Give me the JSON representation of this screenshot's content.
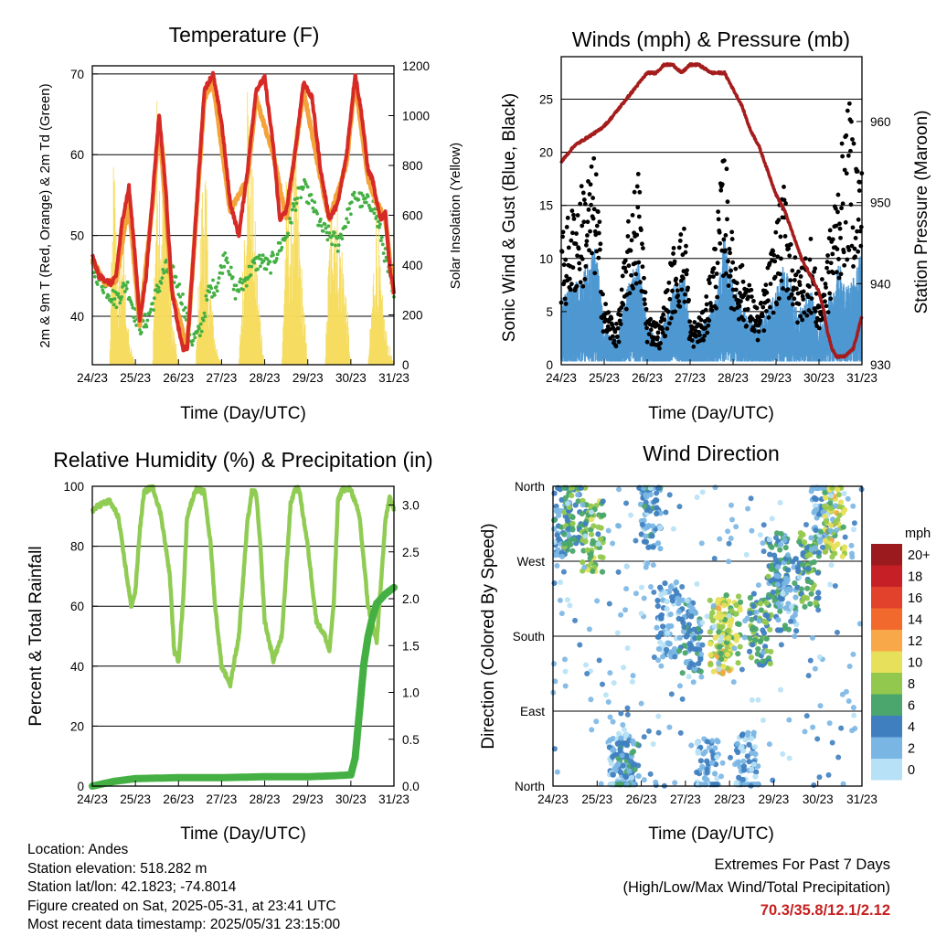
{
  "colors": {
    "temp_2m": "#d62a26",
    "temp_9m": "#f4a23a",
    "dewpoint": "#44b043",
    "solar": "#f6dc5c",
    "wind_sonic": "#4f98d2",
    "gust": "#000000",
    "pressure": "#a51c1c",
    "rh": "#90cc54",
    "precip": "#44b043",
    "extremes_text": "#c62020"
  },
  "info": {
    "location": "Location: Andes",
    "elevation": "Station elevation: 518.282 m",
    "latlon": "Station lat/lon: 42.1823; -74.8014",
    "created": "Figure created on Sat, 2025-05-31, at 23:41 UTC",
    "recent": "Most recent data timestamp: 2025/05/31 23:15:00"
  },
  "extremes": {
    "line1": "Extremes For Past 7 Days",
    "line2": "(High/Low/Max Wind/Total Precipitation)",
    "values": "70.3/35.8/12.1/2.12"
  },
  "chart_data": [
    {
      "type": "line",
      "title": "Temperature (F)",
      "xlabel": "Time (Day/UTC)",
      "ylabel": "2m & 9m T (Red, Orange) & 2m Td (Green)",
      "y2label": "Solar Insolation (Yellow)",
      "x_ticks": [
        "24/23",
        "25/23",
        "26/23",
        "27/23",
        "28/23",
        "29/23",
        "30/23",
        "31/23"
      ],
      "xlim": [
        0,
        7
      ],
      "ylim": [
        34,
        71
      ],
      "y_ticks": [
        40,
        50,
        60,
        70
      ],
      "y2lim": [
        0,
        1200
      ],
      "y2_ticks": [
        0,
        200,
        400,
        600,
        800,
        1000,
        1200
      ],
      "grid": true,
      "series": [
        {
          "name": "2m T",
          "axis": "y",
          "x": [
            0,
            0.15,
            0.3,
            0.45,
            0.55,
            0.7,
            0.85,
            1,
            1.1,
            1.25,
            1.4,
            1.55,
            1.7,
            1.85,
            2,
            2.1,
            2.2,
            2.4,
            2.6,
            2.8,
            3,
            3.2,
            3.4,
            3.6,
            3.8,
            4,
            4.2,
            4.35,
            4.5,
            4.7,
            4.9,
            5.1,
            5.3,
            5.5,
            5.7,
            5.9,
            6.1,
            6.25,
            6.4,
            6.5,
            6.6,
            6.7,
            6.8,
            6.9,
            7
          ],
          "values": [
            47.5,
            45,
            44.5,
            44,
            45,
            52,
            56,
            47,
            39.5,
            45,
            55,
            65,
            56,
            43,
            38.5,
            36,
            36,
            52,
            68,
            70,
            64,
            54,
            50,
            58,
            68,
            69.5,
            61,
            52,
            53,
            60,
            69,
            67,
            58,
            52,
            54,
            60,
            70,
            65,
            58,
            57,
            54,
            52,
            53,
            46,
            43
          ]
        },
        {
          "name": "9m T",
          "axis": "y",
          "x": [
            0,
            0.3,
            0.55,
            0.85,
            1.1,
            1.4,
            1.55,
            1.85,
            2.2,
            2.6,
            2.8,
            3.2,
            3.6,
            3.8,
            4.2,
            4.5,
            4.9,
            5.3,
            5.5,
            5.9,
            6.1,
            6.4,
            6.6,
            6.8,
            7
          ],
          "values": [
            47,
            44,
            44.5,
            54,
            39,
            54,
            64,
            43,
            36,
            67,
            69,
            53,
            57,
            67,
            60,
            52,
            68,
            57,
            52,
            59,
            69,
            57,
            54,
            52,
            42.5
          ]
        },
        {
          "name": "2m Td",
          "axis": "y",
          "x": [
            0,
            0.3,
            0.55,
            0.8,
            1,
            1.15,
            1.3,
            1.5,
            1.7,
            1.9,
            2.1,
            2.3,
            2.5,
            2.7,
            2.9,
            3.1,
            3.3,
            3.5,
            3.7,
            3.9,
            4.1,
            4.3,
            4.5,
            4.7,
            4.9,
            5.1,
            5.3,
            5.5,
            5.7,
            5.9,
            6.1,
            6.3,
            6.5,
            6.7,
            6.85,
            7
          ],
          "values": [
            46,
            43.5,
            42,
            44,
            40,
            38.5,
            40,
            43,
            46,
            45,
            42,
            37,
            38,
            43,
            44,
            48,
            43,
            44,
            46,
            47,
            46,
            48,
            50,
            54,
            56,
            54,
            51,
            50,
            49,
            52,
            55,
            54,
            54,
            50,
            46,
            42
          ]
        },
        {
          "name": "Solar",
          "axis": "y2",
          "x": [
            0,
            0.2,
            0.4,
            0.5,
            0.6,
            0.7,
            0.85,
            1,
            1.2,
            1.4,
            1.5,
            1.6,
            1.7,
            1.85,
            2,
            2.2,
            2.4,
            2.5,
            2.6,
            2.7,
            2.85,
            3,
            3.2,
            3.4,
            3.5,
            3.6,
            3.7,
            3.85,
            4,
            4.2,
            4.4,
            4.5,
            4.6,
            4.7,
            4.85,
            5,
            5.2,
            5.4,
            5.5,
            5.6,
            5.7,
            5.85,
            6,
            6.2,
            6.4,
            6.5,
            6.6,
            6.7,
            6.85,
            7
          ],
          "values": [
            0,
            0,
            0,
            850,
            300,
            600,
            100,
            0,
            0,
            0,
            1000,
            700,
            1000,
            200,
            0,
            0,
            0,
            500,
            900,
            400,
            100,
            0,
            0,
            0,
            400,
            1180,
            800,
            300,
            0,
            0,
            0,
            700,
            600,
            900,
            400,
            0,
            0,
            0,
            500,
            850,
            600,
            400,
            0,
            0,
            0,
            300,
            700,
            300,
            100,
            0
          ]
        }
      ]
    },
    {
      "type": "scatter",
      "title": "Winds (mph) & Pressure (mb)",
      "xlabel": "Time (Day/UTC)",
      "ylabel": "Sonic Wind & Gust (Blue, Black)",
      "y2label": "Station Pressure (Maroon)",
      "x_ticks": [
        "24/23",
        "25/23",
        "26/23",
        "27/23",
        "28/23",
        "29/23",
        "30/23",
        "31/23"
      ],
      "xlim": [
        0,
        7
      ],
      "ylim": [
        0,
        29
      ],
      "y_ticks": [
        0,
        5,
        10,
        15,
        20,
        25
      ],
      "y2lim": [
        930,
        968
      ],
      "y2_ticks": [
        930,
        940,
        950,
        960
      ],
      "grid": true,
      "series": [
        {
          "name": "Sonic Wind",
          "type": "area",
          "x": [
            0,
            0.5,
            0.8,
            1,
            1.3,
            1.6,
            1.8,
            2,
            2.3,
            2.6,
            2.9,
            3,
            3.3,
            3.6,
            3.8,
            4,
            4.3,
            4.6,
            4.9,
            5.2,
            5.5,
            5.8,
            6,
            6.2,
            6.5,
            6.7,
            7
          ],
          "values": [
            5,
            7,
            9,
            3,
            2,
            7,
            8,
            3,
            2,
            6,
            7,
            2,
            3,
            5,
            10,
            6,
            4,
            3,
            5,
            8,
            4,
            6,
            3,
            5,
            8,
            6,
            9
          ]
        },
        {
          "name": "Gust",
          "type": "scatter",
          "x": [
            0,
            0.5,
            0.8,
            1,
            1.3,
            1.6,
            1.8,
            2,
            2.3,
            2.6,
            2.9,
            3,
            3.3,
            3.6,
            3.8,
            4,
            4.3,
            4.6,
            4.9,
            5.2,
            5.5,
            5.8,
            6,
            6.2,
            6.5,
            6.7,
            7
          ],
          "values": [
            10,
            14,
            16,
            5,
            3,
            12,
            15,
            4,
            3,
            9,
            11,
            3,
            4,
            10,
            17,
            9,
            7,
            4,
            9,
            14,
            7,
            10,
            5,
            9,
            16,
            20,
            15
          ]
        },
        {
          "name": "Pressure",
          "type": "line",
          "axis": "y2",
          "x": [
            0,
            0.3,
            0.6,
            0.9,
            1.1,
            1.4,
            1.7,
            2,
            2.2,
            2.4,
            2.6,
            2.8,
            3,
            3.2,
            3.5,
            3.8,
            4,
            4.2,
            4.4,
            4.6,
            4.8,
            5,
            5.2,
            5.4,
            5.6,
            5.8,
            6,
            6.1,
            6.2,
            6.3,
            6.4,
            6.5,
            6.6,
            6.8,
            7
          ],
          "values": [
            955,
            957,
            958,
            959,
            960,
            962,
            964,
            966,
            966,
            967,
            967,
            966,
            967,
            967,
            966,
            966,
            964,
            962,
            959,
            957,
            954,
            951,
            949,
            946,
            943,
            941,
            939,
            937,
            934,
            932,
            931,
            931,
            931,
            932,
            936
          ]
        }
      ]
    },
    {
      "type": "line",
      "title": "Relative Humidity (%) & Precipitation (in)",
      "xlabel": "Time (Day/UTC)",
      "ylabel": "Percent & Total Rainfall",
      "x_ticks": [
        "24/23",
        "25/23",
        "26/23",
        "27/23",
        "28/23",
        "29/23",
        "30/23",
        "31/23"
      ],
      "xlim": [
        0,
        7
      ],
      "ylim": [
        0,
        100
      ],
      "y_ticks": [
        0,
        20,
        40,
        60,
        80,
        100
      ],
      "y2lim": [
        0,
        3.2
      ],
      "y2_ticks": [
        "0.0",
        "0.5",
        "1.0",
        "1.5",
        "2.0",
        "2.5",
        "3.0"
      ],
      "grid": true,
      "series": [
        {
          "name": "RH",
          "axis": "y",
          "x": [
            0,
            0.2,
            0.4,
            0.6,
            0.7,
            0.8,
            0.9,
            1,
            1.1,
            1.2,
            1.4,
            1.6,
            1.8,
            1.9,
            2,
            2.1,
            2.2,
            2.4,
            2.6,
            2.75,
            2.85,
            3,
            3.2,
            3.4,
            3.6,
            3.7,
            3.8,
            3.9,
            4,
            4.2,
            4.4,
            4.6,
            4.7,
            4.8,
            5,
            5.2,
            5.4,
            5.5,
            5.6,
            5.7,
            5.8,
            6,
            6.2,
            6.4,
            6.6,
            6.8,
            6.9,
            7
          ],
          "values": [
            92,
            94,
            95,
            90,
            80,
            70,
            60,
            65,
            85,
            98,
            100,
            90,
            70,
            45,
            42,
            60,
            90,
            99,
            98,
            80,
            60,
            40,
            34,
            50,
            88,
            98,
            98,
            80,
            55,
            42,
            50,
            94,
            99,
            99,
            80,
            55,
            50,
            45,
            60,
            95,
            99,
            99,
            90,
            60,
            48,
            88,
            97,
            92
          ]
        },
        {
          "name": "Precipitation",
          "axis": "y2",
          "x": [
            0,
            0.5,
            1,
            2,
            3,
            4,
            5,
            5.6,
            6,
            6.1,
            6.2,
            6.3,
            6.4,
            6.5,
            6.6,
            6.8,
            7
          ],
          "values": [
            0,
            0.05,
            0.08,
            0.09,
            0.09,
            0.1,
            0.1,
            0.11,
            0.12,
            0.3,
            0.8,
            1.3,
            1.6,
            1.8,
            1.95,
            2.05,
            2.12
          ]
        }
      ]
    },
    {
      "type": "scatter",
      "title": "Wind Direction",
      "xlabel": "Time (Day/UTC)",
      "ylabel": "Direction (Colored By Speed)",
      "x_ticks": [
        "24/23",
        "25/23",
        "26/23",
        "27/23",
        "28/23",
        "29/23",
        "30/23",
        "31/23"
      ],
      "xlim": [
        0,
        7
      ],
      "ylim": [
        0,
        360
      ],
      "y_ticks": [
        "North",
        "East",
        "South",
        "West",
        "North"
      ],
      "legend_title": "mph",
      "legend_labels": [
        "20+",
        "18",
        "16",
        "14",
        "12",
        "10",
        "8",
        "6",
        "4",
        "2",
        "0"
      ],
      "legend_colors": [
        "#9b1a1e",
        "#c62026",
        "#e2412c",
        "#f2692e",
        "#f8a848",
        "#e7e05a",
        "#93c84e",
        "#4aa66c",
        "#3f7fc0",
        "#7ab6e4",
        "#b7e1f6"
      ],
      "series": [
        {
          "name": "Direction",
          "x": [
            0.2,
            0.5,
            0.9,
            1.5,
            1.7,
            2.2,
            2.6,
            3.1,
            3.5,
            3.8,
            4.0,
            4.4,
            4.7,
            5.1,
            5.3,
            5.8,
            6.1,
            6.4
          ],
          "values": [
            320,
            330,
            300,
            20,
            10,
            330,
            200,
            180,
            10,
            180,
            185,
            20,
            190,
            260,
            230,
            260,
            330,
            320
          ],
          "speed": [
            4,
            6,
            7,
            2,
            4,
            3,
            2,
            4,
            2,
            10,
            8,
            2,
            6,
            5,
            3,
            6,
            3,
            9
          ]
        }
      ]
    }
  ]
}
